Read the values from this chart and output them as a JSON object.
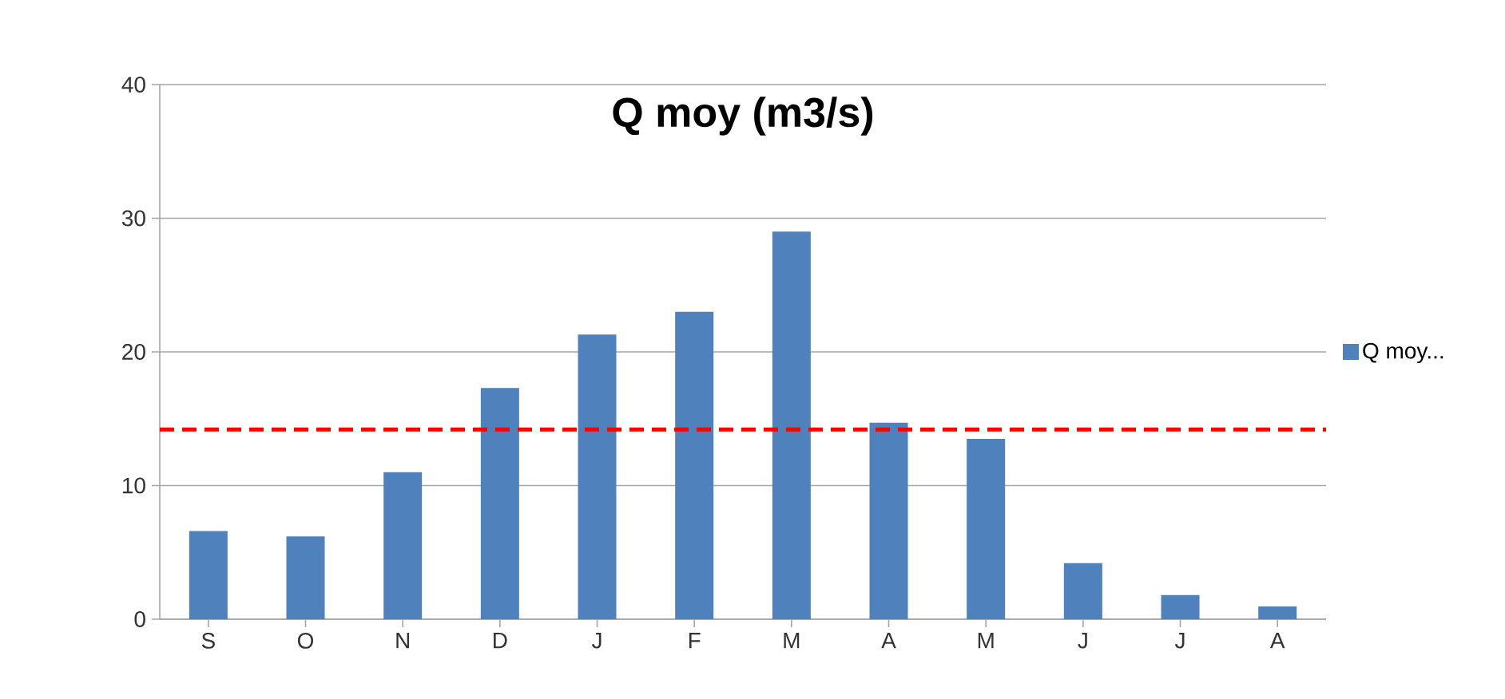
{
  "chart_data": {
    "type": "bar",
    "title": "Q moy (m3/s)",
    "categories": [
      "S",
      "O",
      "N",
      "D",
      "J",
      "F",
      "M",
      "A",
      "M",
      "J",
      "J",
      "A"
    ],
    "series": [
      {
        "name": "Q moy...",
        "color": "#4f81bd",
        "values": [
          6.6,
          6.2,
          11.0,
          17.3,
          21.3,
          23.0,
          29.0,
          14.7,
          13.5,
          4.2,
          1.8,
          0.95
        ]
      }
    ],
    "ylim": [
      0,
      40
    ],
    "yticks": [
      0,
      10,
      20,
      30,
      40
    ],
    "grid": "y",
    "legend": "right",
    "ref_lines": [
      {
        "axis": "y",
        "value": 14.2,
        "color": "#ff0000",
        "line_style": "dashed"
      }
    ]
  }
}
